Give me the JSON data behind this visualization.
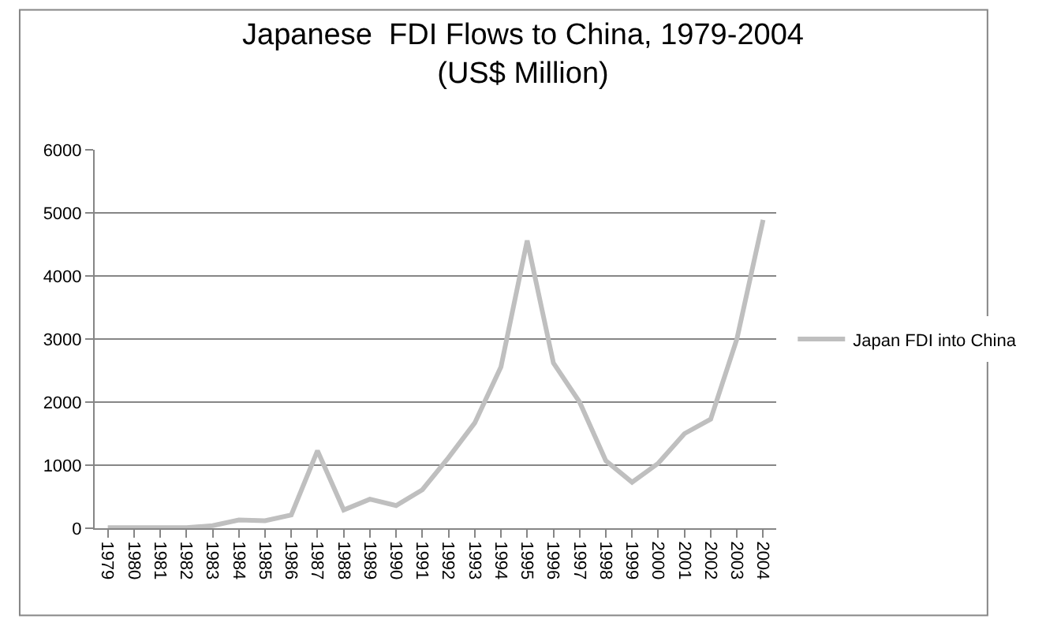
{
  "chart_data": {
    "type": "line",
    "title": "Japanese  FDI Flows to China, 1979-2004",
    "subtitle": "(US$ Million)",
    "categories": [
      "1979",
      "1980",
      "1981",
      "1982",
      "1983",
      "1984",
      "1985",
      "1986",
      "1987",
      "1988",
      "1989",
      "1990",
      "1991",
      "1992",
      "1993",
      "1994",
      "1995",
      "1996",
      "1997",
      "1998",
      "1999",
      "2000",
      "2001",
      "2002",
      "2003",
      "2004"
    ],
    "series": [
      {
        "name": "Japan FDI into China",
        "color": "#bfbfbf",
        "values": [
          10,
          10,
          10,
          10,
          40,
          130,
          120,
          210,
          1230,
          290,
          460,
          360,
          610,
          1120,
          1670,
          2560,
          4560,
          2620,
          2000,
          1070,
          730,
          1030,
          1500,
          1730,
          3000,
          4890
        ]
      }
    ],
    "ylim": [
      0,
      6000
    ],
    "yticks": [
      0,
      1000,
      2000,
      3000,
      4000,
      5000,
      6000
    ],
    "grid": "y",
    "legend": "right",
    "marker": "none",
    "line_style": "solid"
  }
}
